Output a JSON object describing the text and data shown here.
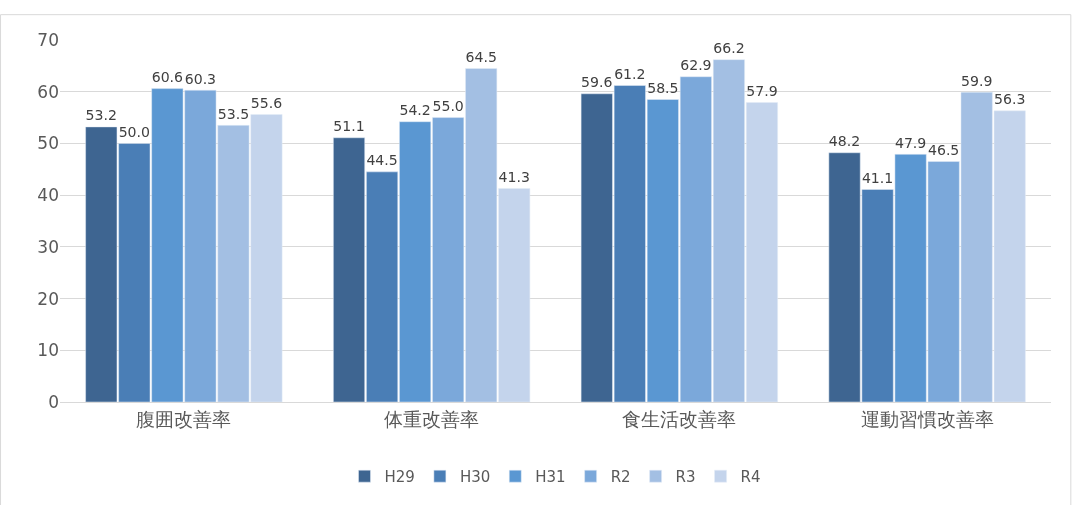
{
  "chart_data": {
    "type": "bar",
    "categories": [
      "腹囲改善率",
      "体重改善率",
      "食生活改善率",
      "運動習慣改善率"
    ],
    "series": [
      {
        "name": "H29",
        "color": "#3e6591",
        "values": [
          53.2,
          51.1,
          59.6,
          48.2
        ],
        "value_labels": [
          "53.2",
          "51.1",
          "59.6",
          "48.2"
        ]
      },
      {
        "name": "H30",
        "color": "#4a7eb6",
        "values": [
          50.0,
          44.5,
          61.2,
          41.1
        ],
        "value_labels": [
          "50.0",
          "44.5",
          "61.2",
          "41.1"
        ]
      },
      {
        "name": "H31",
        "color": "#5a97d2",
        "values": [
          60.6,
          54.2,
          58.5,
          47.9
        ],
        "value_labels": [
          "60.6",
          "54.2",
          "58.5",
          "47.9"
        ]
      },
      {
        "name": "R2",
        "color": "#7ba8da",
        "values": [
          60.3,
          55.0,
          62.9,
          46.5
        ],
        "value_labels": [
          "60.3",
          "55.0",
          "62.9",
          "46.5"
        ]
      },
      {
        "name": "R3",
        "color": "#a3bfe3",
        "values": [
          53.5,
          64.5,
          66.2,
          59.9
        ],
        "value_labels": [
          "53.5",
          "64.5",
          "66.2",
          "59.9"
        ]
      },
      {
        "name": "R4",
        "color": "#c4d4ec",
        "values": [
          55.6,
          41.3,
          57.9,
          56.3
        ],
        "value_labels": [
          "55.6",
          "41.3",
          "57.9",
          "56.3"
        ]
      }
    ],
    "ylim": [
      0,
      70
    ],
    "yticks": [
      0,
      10,
      20,
      30,
      40,
      50,
      60,
      70
    ],
    "grid": "y",
    "legend": "bottom"
  }
}
